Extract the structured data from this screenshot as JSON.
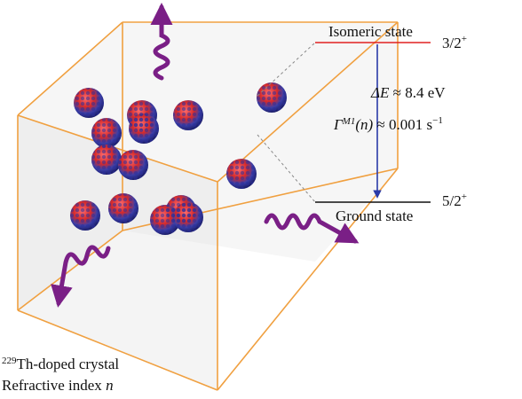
{
  "levels": {
    "isomeric": {
      "label": "Isomeric state",
      "spin": "3/2",
      "parity": "+"
    },
    "ground": {
      "label": "Ground state",
      "spin": "5/2",
      "parity": "+"
    }
  },
  "transition": {
    "energy": {
      "symbol": "ΔE",
      "relation": "≈ 8.4",
      "unit": "eV"
    },
    "rate": {
      "symbol": "Γ",
      "superscript": "M1",
      "argument": "(n)",
      "relation": "≈ 0.001",
      "unit": "s",
      "unit_exponent": "−1"
    }
  },
  "crystal": {
    "isotope": "229",
    "name": "Th-doped crystal",
    "index_label": "Refractive index",
    "index_symbol": "n"
  }
}
